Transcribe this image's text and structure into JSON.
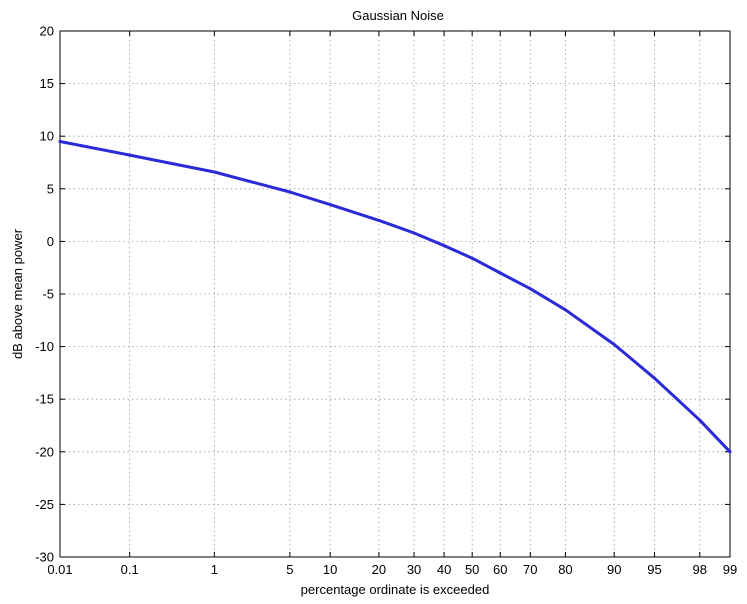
{
  "chart_data": {
    "type": "line",
    "title": "Gaussian Noise",
    "xlabel": "percentage ordinate is exceeded",
    "ylabel": "dB above mean power",
    "grid": true,
    "x_scale": "normal-probability",
    "x_ticks": [
      "0.01",
      "0.1",
      "1",
      "5",
      "10",
      "20",
      "30",
      "40",
      "50",
      "60",
      "70",
      "80",
      "90",
      "95",
      "98",
      "99"
    ],
    "y_ticks": [
      "20",
      "15",
      "10",
      "5",
      "0",
      "-5",
      "-10",
      "-15",
      "-20",
      "-25",
      "-30"
    ],
    "ylim": [
      -30,
      20
    ],
    "xlim": [
      0.01,
      99
    ],
    "series": [
      {
        "color": "#2a2ad8",
        "x": [
          0.01,
          0.1,
          1,
          5,
          10,
          20,
          30,
          40,
          50,
          60,
          70,
          80,
          90,
          95,
          98,
          99
        ],
        "y": [
          9.5,
          8.2,
          6.6,
          4.7,
          3.5,
          2.0,
          0.8,
          -0.4,
          -1.6,
          -3.0,
          -4.5,
          -6.5,
          -9.8,
          -13.0,
          -17.0,
          -20.0
        ]
      }
    ]
  }
}
